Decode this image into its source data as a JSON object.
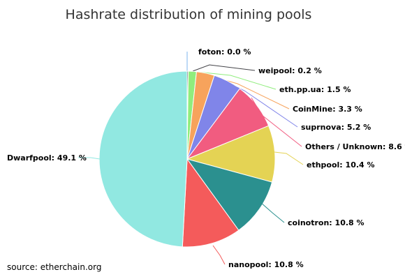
{
  "chart_data": {
    "type": "pie",
    "title": "Hashrate distribution of mining pools",
    "slices": [
      {
        "label": "foton: 0.0 %",
        "value": 0.0,
        "color": "#7cb5ec"
      },
      {
        "label": "weipool: 0.2 %",
        "value": 0.2,
        "color": "#434348"
      },
      {
        "label": "eth.pp.ua: 1.5 %",
        "value": 1.5,
        "color": "#90ed7d"
      },
      {
        "label": "CoinMine: 3.3 %",
        "value": 3.3,
        "color": "#f7a35c"
      },
      {
        "label": "suprnova: 5.2 %",
        "value": 5.2,
        "color": "#8085e9"
      },
      {
        "label": "Others / Unknown: 8.6 %",
        "value": 8.6,
        "color": "#f15c80"
      },
      {
        "label": "ethpool: 10.4 %",
        "value": 10.4,
        "color": "#e4d354"
      },
      {
        "label": "coinotron: 10.8 %",
        "value": 10.8,
        "color": "#2b908f"
      },
      {
        "label": "nanopool: 10.8 %",
        "value": 10.8,
        "color": "#f45b5b"
      },
      {
        "label": "Dwarfpool: 49.1 %",
        "value": 49.1,
        "color": "#91e8e1"
      }
    ]
  },
  "source": "source: etherchain.org"
}
